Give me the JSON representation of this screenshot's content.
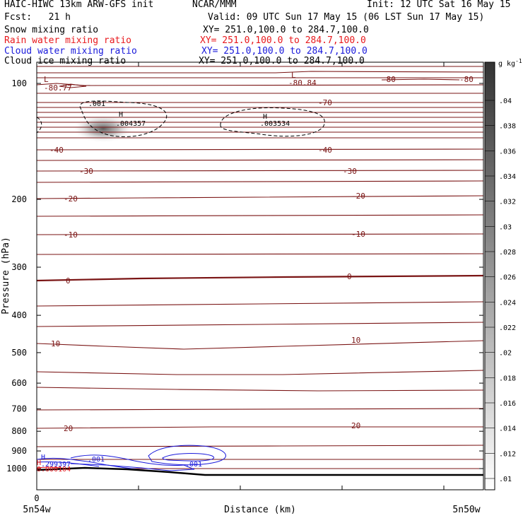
{
  "header": {
    "title_left": "HAIC-HIWC 13km ARW-GFS init",
    "org": "NCAR/MMM",
    "init": "Init: 12 UTC Sat 16 May 15",
    "fcst": "Fcst:   21 h",
    "valid": "Valid: 09 UTC Sun 17 May 15 (06 LST Sun 17 May 15)"
  },
  "fields": [
    {
      "name": "Snow mixing ratio",
      "xy": "XY= 251.0,100.0 to 284.7,100.0",
      "color": "#000000"
    },
    {
      "name": "Rain water mixing ratio",
      "xy": "XY= 251.0,100.0 to 284.7,100.0",
      "color": "#e8191d"
    },
    {
      "name": "Cloud water mixing ratio",
      "xy": "XY= 251.0,100.0 to 284.7,100.0",
      "color": "#1a1adb"
    },
    {
      "name": "Cloud ice mixing ratio",
      "xy": "XY= 251.0,100.0 to 284.7,100.0",
      "color": "#000000"
    }
  ],
  "chart_data": {
    "type": "contour",
    "xlabel": "Distance (km)",
    "ylabel": "Pressure (hPa)",
    "x_ticks": [
      "0"
    ],
    "x_endpoints": [
      "5n54w",
      "5n50w"
    ],
    "y_ticks": [
      "100",
      "200",
      "300",
      "400",
      "500",
      "600",
      "700",
      "800",
      "900",
      "1000"
    ],
    "colorbar": {
      "unit": "g kg",
      "unit_exp": "-1",
      "ticks": [
        ".01",
        ".012",
        ".014",
        ".016",
        ".018",
        ".02",
        ".022",
        ".024",
        ".026",
        ".028",
        ".03",
        ".032",
        ".034",
        ".036",
        ".038",
        ".04"
      ]
    },
    "temperature_labels": [
      "-80.77",
      "-80.84",
      "-80",
      "-80",
      "-70",
      "-40",
      "-40",
      "-30",
      "-30",
      "-20",
      "-20",
      "-10",
      "-10",
      "0",
      "0",
      "10",
      "10",
      "20",
      "20"
    ],
    "extrema_labels": [
      {
        "mark": "L",
        "value": "-80.77"
      },
      {
        "mark": "L",
        "value": "-80.84"
      },
      {
        "mark": "H",
        "value": ".004357"
      },
      {
        "mark": "H",
        "value": ".003534"
      },
      {
        "mark": "H",
        "value": ".299397"
      },
      {
        "mark": "",
        "value": "0.000104"
      }
    ],
    "contour_labels": [
      ".001",
      ".001",
      ".001"
    ],
    "colors": {
      "temperature": "#7a1414",
      "rain": "#e8191d",
      "cloud_water": "#1a1adb",
      "terrain": "#000000"
    }
  }
}
